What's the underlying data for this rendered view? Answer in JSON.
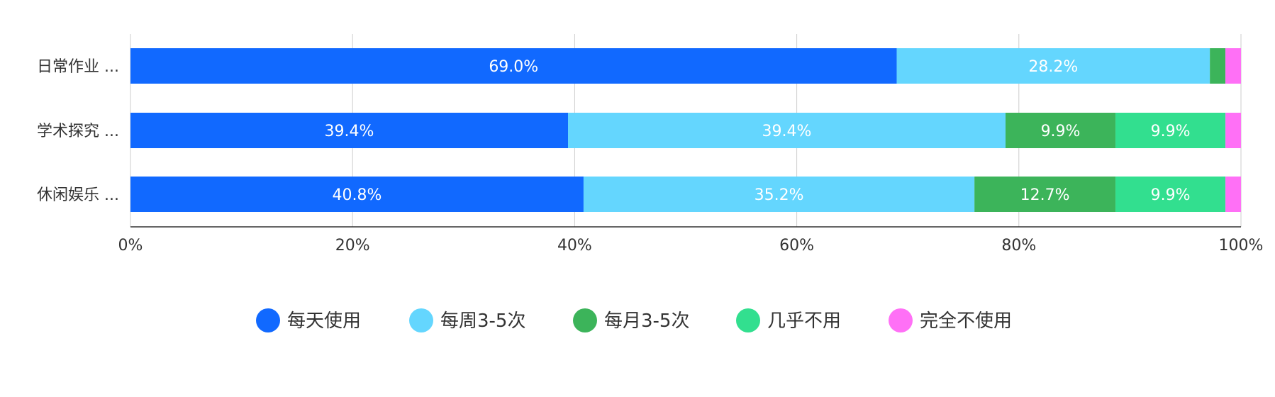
{
  "chart_data": {
    "type": "bar",
    "orientation": "horizontal",
    "stacked": true,
    "percent_stacked": true,
    "categories": [
      "日常作业 ...",
      "学术探究 ...",
      "休闲娱乐 ..."
    ],
    "series": [
      {
        "name": "每天使用",
        "color": "#1169ff",
        "values": [
          69.0,
          39.4,
          40.8
        ],
        "labels": [
          "69.0%",
          "39.4%",
          "40.8%"
        ]
      },
      {
        "name": "每周3-5次",
        "color": "#64d6fe",
        "values": [
          28.2,
          39.4,
          35.2
        ],
        "labels": [
          "28.2%",
          "39.4%",
          "35.2%"
        ]
      },
      {
        "name": "每月3-5次",
        "color": "#3cb45a",
        "values": [
          1.4,
          9.9,
          12.7
        ],
        "labels": [
          "",
          "9.9%",
          "12.7%"
        ]
      },
      {
        "name": "几乎不用",
        "color": "#32df8f",
        "values": [
          0,
          9.9,
          9.9
        ],
        "labels": [
          "",
          "9.9%",
          "9.9%"
        ]
      },
      {
        "name": "完全不使用",
        "color": "#ff70f6",
        "values": [
          1.4,
          1.4,
          1.4
        ],
        "labels": [
          "",
          "",
          ""
        ]
      }
    ],
    "x_ticks": [
      "0%",
      "20%",
      "40%",
      "60%",
      "80%",
      "100%"
    ],
    "xlim": [
      0,
      100
    ],
    "grid": true,
    "legend_position": "bottom"
  }
}
